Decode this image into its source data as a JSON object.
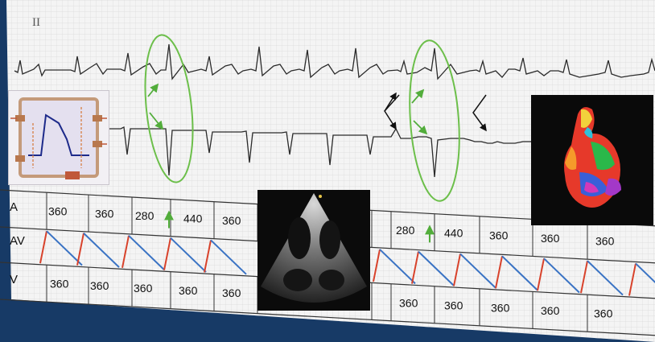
{
  "ecg": {
    "lead_label": "II"
  },
  "ladder": {
    "row_labels": [
      "A",
      "AV",
      "V"
    ],
    "a_row": [
      "360",
      "360",
      "280",
      "440",
      "360",
      "",
      "280",
      "440",
      "360",
      "360",
      "360"
    ],
    "v_row": [
      "360",
      "360",
      "360",
      "360",
      "360",
      "",
      "360",
      "360",
      "360",
      "360",
      "360"
    ]
  },
  "colors": {
    "background": "#173a66",
    "paper": "#f4f4f4",
    "grid": "#d7d7d7",
    "trace": "#2a2a2a",
    "ellipse": "#6cbf4a",
    "arrow_green": "#52ad3b",
    "av_red": "#d8422b",
    "av_blue": "#3a73c4"
  }
}
